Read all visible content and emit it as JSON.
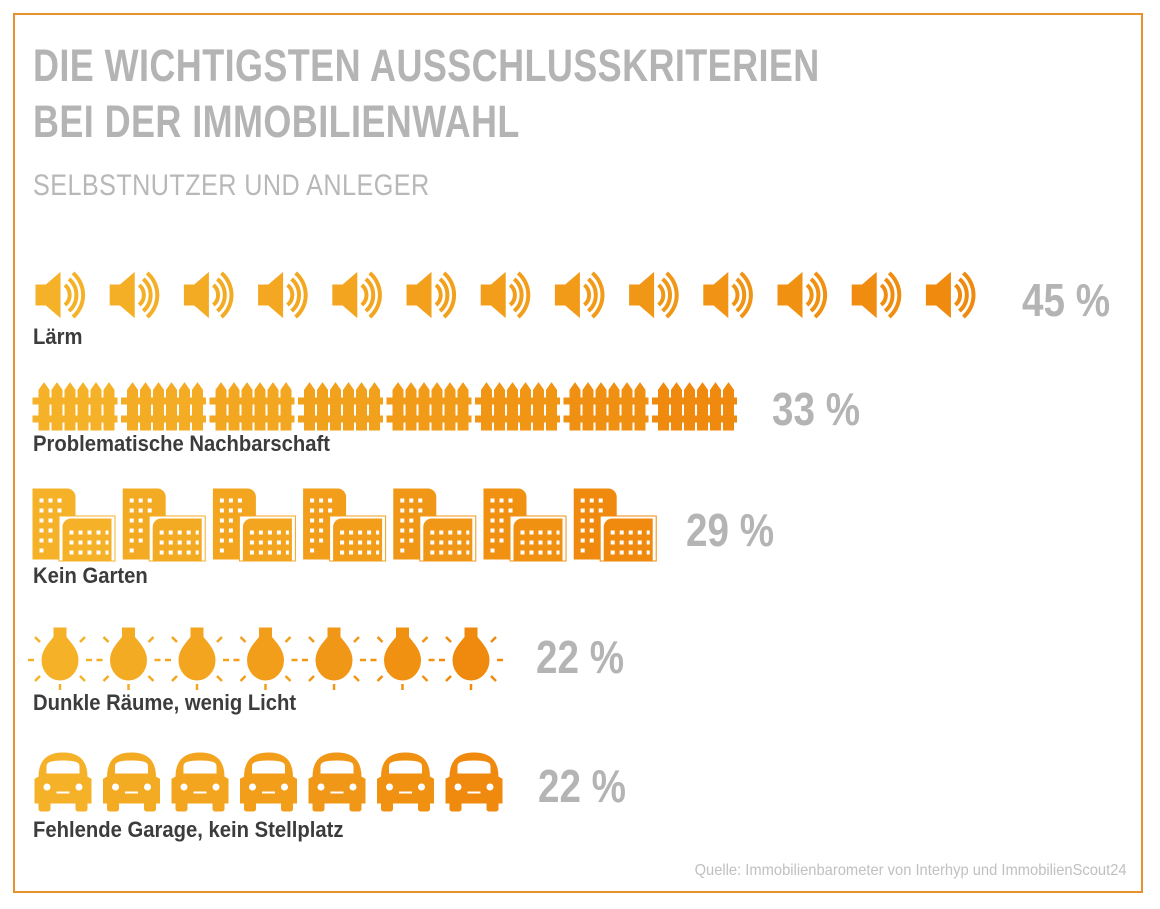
{
  "title_line1": "DIE WICHTIGSTEN AUSSCHLUSSKRITERIEN",
  "title_line2": "BEI DER IMMOBILIENWAHL",
  "subtitle": "SELBSTNUTZER UND ANLEGER",
  "source": "Quelle: Immobilienbarometer von Interhyp und ImmobilienScout24",
  "colors": {
    "icon_light": "#f5b228",
    "icon_dark": "#ef8a0e",
    "value_text": "#b4b4b4",
    "frame": "#e8922e"
  },
  "chart_data": {
    "type": "bar",
    "title": "DIE WICHTIGSTEN AUSSCHLUSSKRITERIEN BEI DER IMMOBILIENWAHL",
    "subtitle": "SELBSTNUTZER UND ANLEGER",
    "unit": "%",
    "categories": [
      "Lärm",
      "Problematische Nachbarschaft",
      "Kein Garten",
      "Dunkle Räume, wenig Licht",
      "Fehlende Garage, kein Stellplatz"
    ],
    "values": [
      45,
      33,
      29,
      22,
      22
    ],
    "value_labels": [
      "45 %",
      "33 %",
      "29 %",
      "22 %",
      "22 %"
    ],
    "icons": [
      "speaker-icon",
      "fence-icon",
      "buildings-icon",
      "lightbulb-icon",
      "car-icon"
    ],
    "icon_counts": [
      13,
      8,
      7,
      7,
      7
    ]
  }
}
